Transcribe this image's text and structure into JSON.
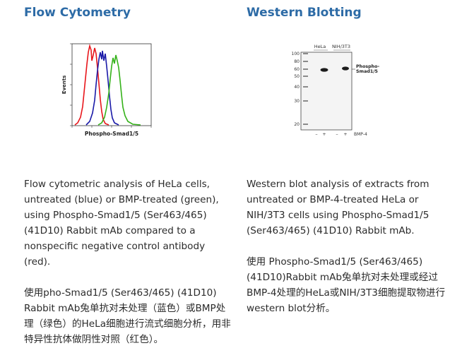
{
  "flow": {
    "heading": "Flow Cytometry",
    "ylabel": "Events",
    "xlabel": "Phospho-Smad1/5",
    "series_colors": {
      "control": "#e8161b",
      "untreated": "#1a1aa8",
      "treated": "#35b21a"
    },
    "caption_en": "Flow cytometric analysis of HeLa cells, untreated (blue) or BMP-treated (green), using Phospho-Smad1/5 (Ser463/465) (41D10) Rabbit mAb compared to a nonspecific negative control antibody (red).",
    "caption_zh": "使用pho-Smad1/5 (Ser463/465) (41D10) Rabbit mAb兔单抗对未处理（蓝色）或BMP处理（绿色）的HeLa细胞进行流式细胞分析，用非特异性抗体做阴性对照（红色）。"
  },
  "western": {
    "heading": "Western Blotting",
    "lane_groups": [
      "HeLa",
      "NIH/3T3"
    ],
    "markers": [
      "100",
      "80",
      "60",
      "50",
      "40",
      "30",
      "20"
    ],
    "band_label_line1": "Phospho-",
    "band_label_line2": "Smad1/5",
    "treatment_signs": [
      "–",
      "+",
      "–",
      "+"
    ],
    "treatment_label": "BMP-4",
    "caption_en": "Western blot analysis of extracts from untreated or BMP-4-treated HeLa or NIH/3T3 cells using Phospho-Smad1/5 (Ser463/465) (41D10) Rabbit mAb.",
    "caption_zh": "使用 Phospho-Smad1/5 (Ser463/465) (41D10)Rabbit mAb兔单抗对未处理或经过BMP-4处理的HeLa或NIH/3T3细胞提取物进行western blot分析。"
  }
}
